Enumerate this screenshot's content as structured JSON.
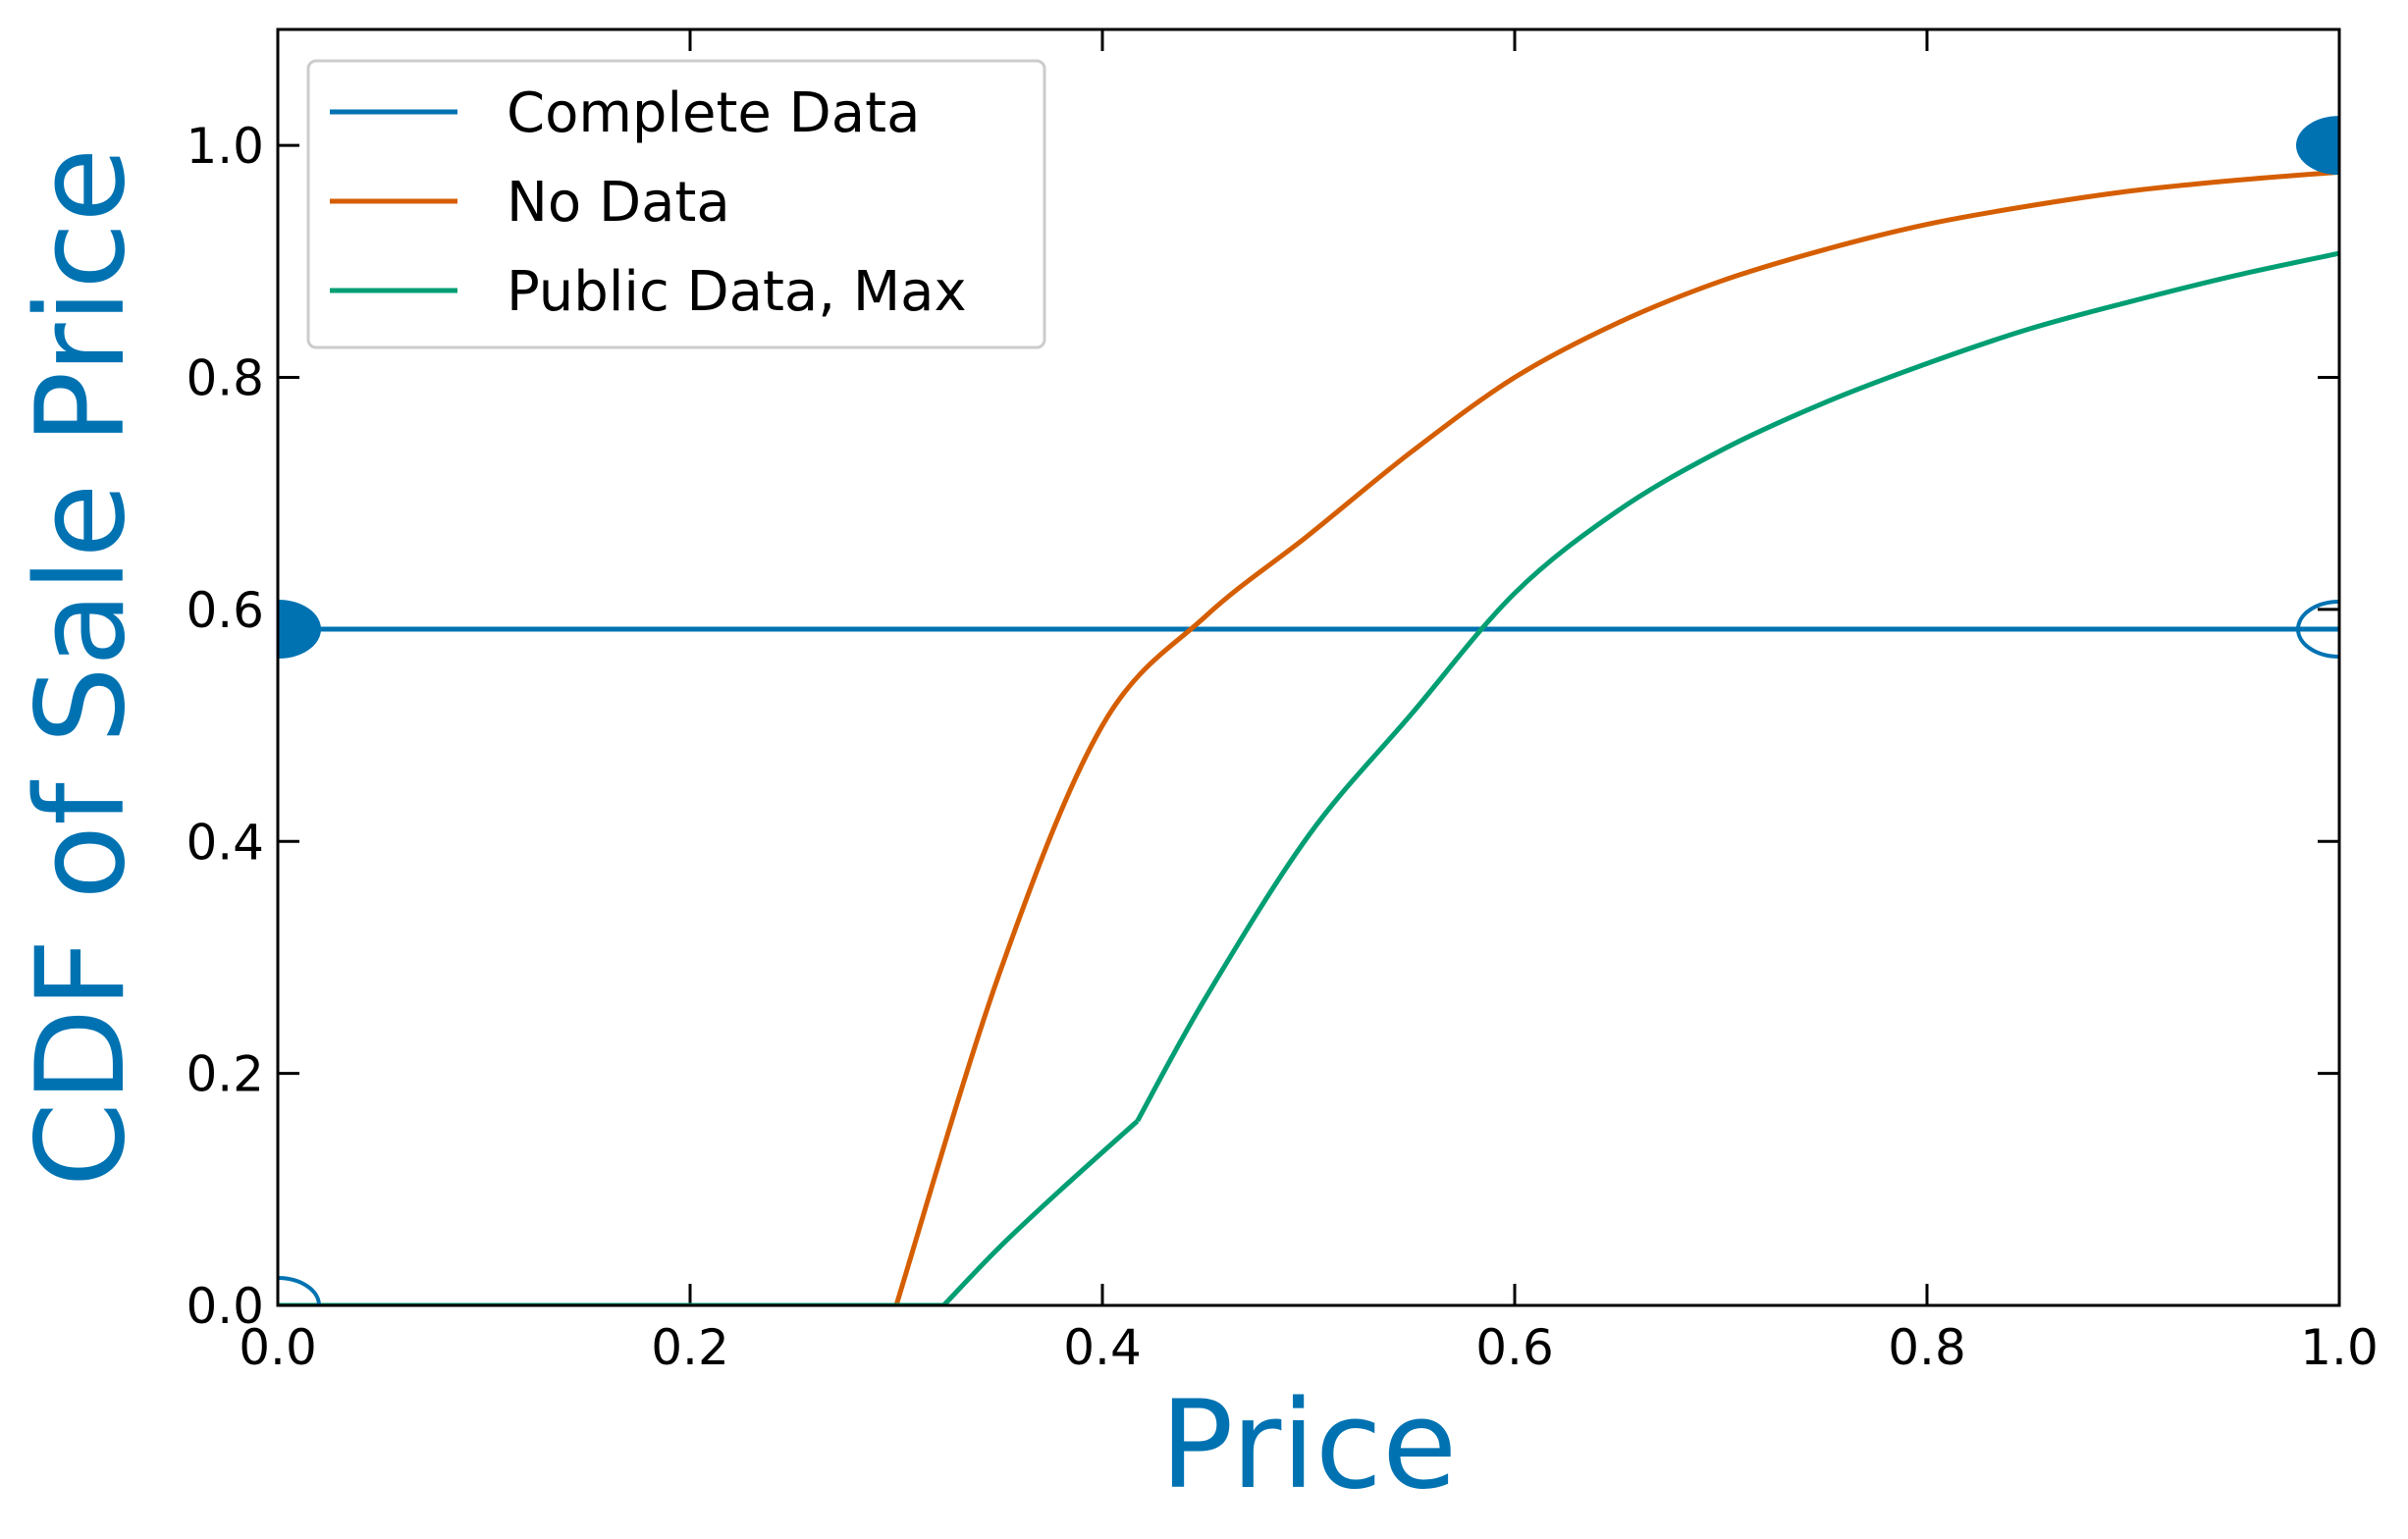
{
  "chart_data": {
    "type": "line",
    "xlabel": "Price",
    "ylabel": "CDF of Sale Price",
    "xlim": [
      0.0,
      1.0
    ],
    "ylim": [
      0.0,
      1.1
    ],
    "xticks": [
      0.0,
      0.2,
      0.4,
      0.6,
      0.8,
      1.0
    ],
    "yticks": [
      0.0,
      0.2,
      0.4,
      0.6,
      0.8,
      1.0
    ],
    "xtick_labels": [
      "0.0",
      "0.2",
      "0.4",
      "0.6",
      "0.8",
      "1.0"
    ],
    "ytick_labels": [
      "0.0",
      "0.2",
      "0.4",
      "0.6",
      "0.8",
      "1.0"
    ],
    "grid": false,
    "legend_position": "top-left",
    "label_color": "#0072b2",
    "series": [
      {
        "name": "Complete Data",
        "color": "#0072b2",
        "x": [
          0.0,
          1.0
        ],
        "y": [
          0.583,
          0.583
        ],
        "markers": [
          {
            "x": 0.0,
            "y": 0.0,
            "filled": false
          },
          {
            "x": 0.0,
            "y": 0.583,
            "filled": true
          },
          {
            "x": 1.0,
            "y": 0.583,
            "filled": false
          },
          {
            "x": 1.0,
            "y": 1.0,
            "filled": true
          }
        ]
      },
      {
        "name": "No Data",
        "color": "#d55e00",
        "x": [
          0.0,
          0.3,
          0.35,
          0.4,
          0.45,
          0.5,
          0.55,
          0.6,
          0.65,
          0.7,
          0.75,
          0.8,
          0.85,
          0.9,
          0.95,
          1.0
        ],
        "y": [
          0.0,
          0.0,
          0.286,
          0.5,
          0.594,
          0.664,
          0.736,
          0.8,
          0.847,
          0.883,
          0.91,
          0.932,
          0.948,
          0.961,
          0.97,
          0.977
        ]
      },
      {
        "name": "Public Data, Max",
        "color": "#009e73",
        "x": [
          0.0,
          0.323,
          0.35,
          0.38,
          0.417,
          0.45,
          0.5,
          0.55,
          0.6,
          0.65,
          0.7,
          0.75,
          0.8,
          0.85,
          0.9,
          0.95,
          1.0
        ],
        "y": [
          0.0,
          0.0,
          0.05,
          0.1,
          0.159,
          0.265,
          0.405,
          0.51,
          0.614,
          0.685,
          0.737,
          0.778,
          0.812,
          0.842,
          0.866,
          0.888,
          0.907
        ]
      }
    ]
  }
}
